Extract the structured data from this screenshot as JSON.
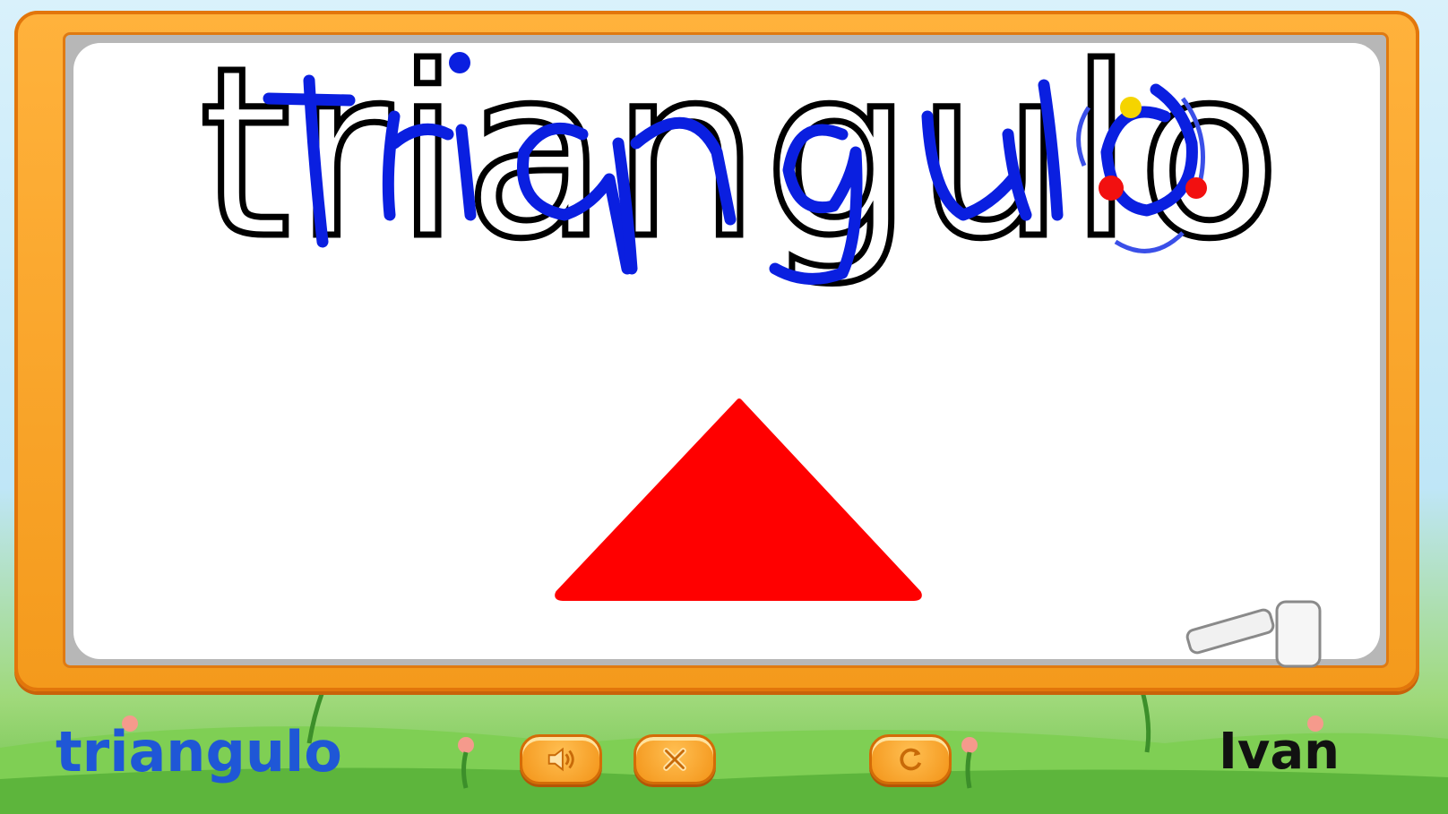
{
  "board": {
    "target_word": "triangulo",
    "shape": "triangle",
    "shape_color": "#ff0000",
    "trace_color": "#0a1fe0",
    "outline_color": "#000000"
  },
  "footer": {
    "word_label": "triangulo",
    "player_name": "Ivan",
    "word_color": "#1f57d6"
  },
  "controls": {
    "sound_icon": "speaker-icon",
    "clear_icon": "x-icon",
    "reload_icon": "refresh-icon"
  },
  "theme": {
    "frame_color": "#f7a021",
    "grass_color": "#6cc04a",
    "sky_color": "#cdeefa"
  }
}
